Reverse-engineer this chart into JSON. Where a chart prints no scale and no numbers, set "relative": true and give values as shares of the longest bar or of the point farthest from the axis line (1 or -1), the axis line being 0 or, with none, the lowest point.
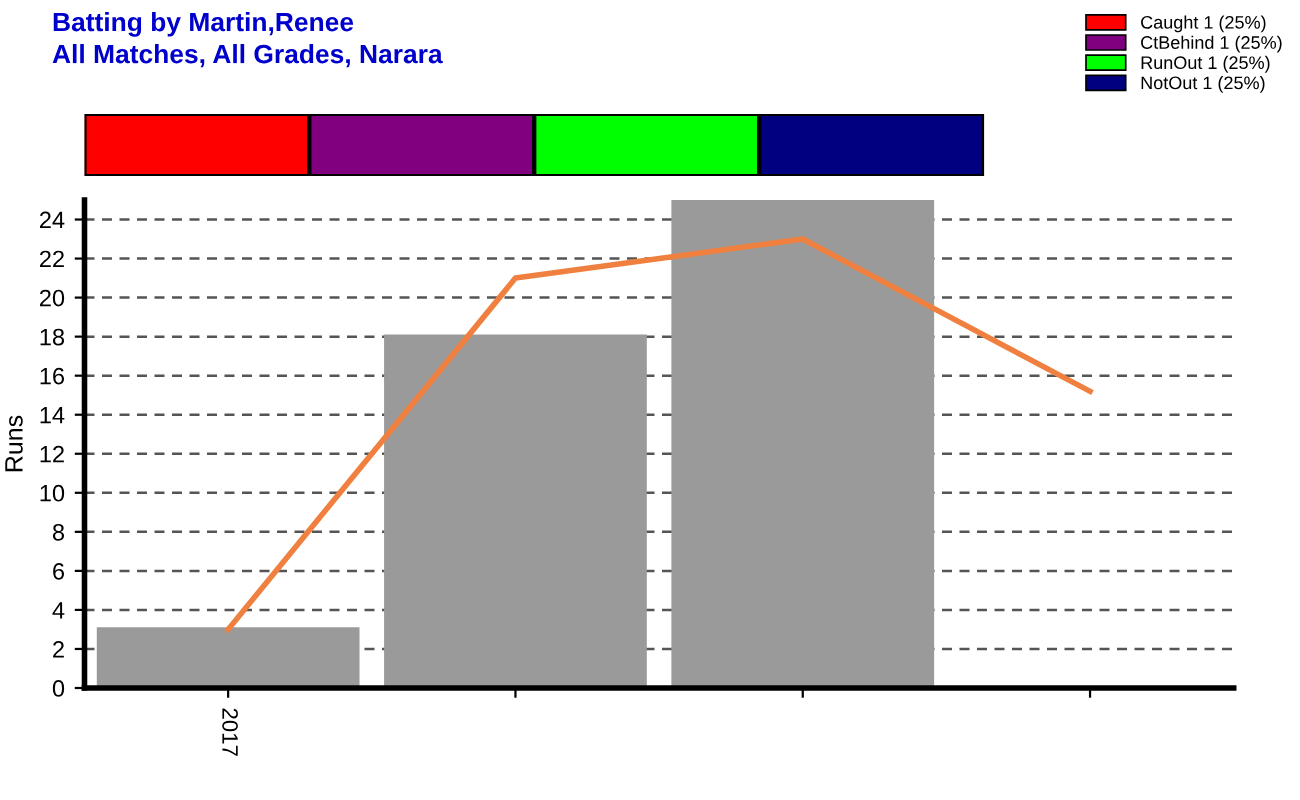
{
  "chart_data": [
    {
      "type": "bar",
      "title": "Batting by Martin,Renee",
      "subtitle": "All Matches, All Grades, Narara",
      "orientation": "horizontal",
      "stacked": true,
      "relative": true,
      "tick_labels": false,
      "legend": "top right",
      "categories": [
        null
      ],
      "series": [
        {
          "name": "Caught 1 (25%)",
          "color": "#ff0000",
          "values": [
            0.25
          ]
        },
        {
          "name": "CtBehind 1 (25%)",
          "color": "#800080",
          "values": [
            0.25
          ]
        },
        {
          "name": "RunOut 1 (25%)",
          "color": "#00ff00",
          "values": [
            0.25
          ]
        },
        {
          "name": "NotOut 1 (25%)",
          "color": "#000080",
          "values": [
            0.25
          ]
        }
      ]
    },
    {
      "type": "bar",
      "ylabel": "Runs",
      "categories": [
        "2017",
        null,
        null,
        null
      ],
      "ylim": [
        0,
        25
      ],
      "yticks": [
        0,
        2,
        4,
        6,
        8,
        10,
        12,
        14,
        16,
        18,
        20,
        22,
        24
      ],
      "grid": "y",
      "series": [
        {
          "colors": [
            "#9a9a9a",
            "#9a9a9a",
            "#9a9a9a",
            "#1e5a1e"
          ],
          "values": [
            3,
            18,
            25,
            0
          ]
        },
        {
          "type": "line",
          "color": "#f08040",
          "values": [
            3,
            21,
            23,
            15.2
          ]
        }
      ]
    }
  ]
}
